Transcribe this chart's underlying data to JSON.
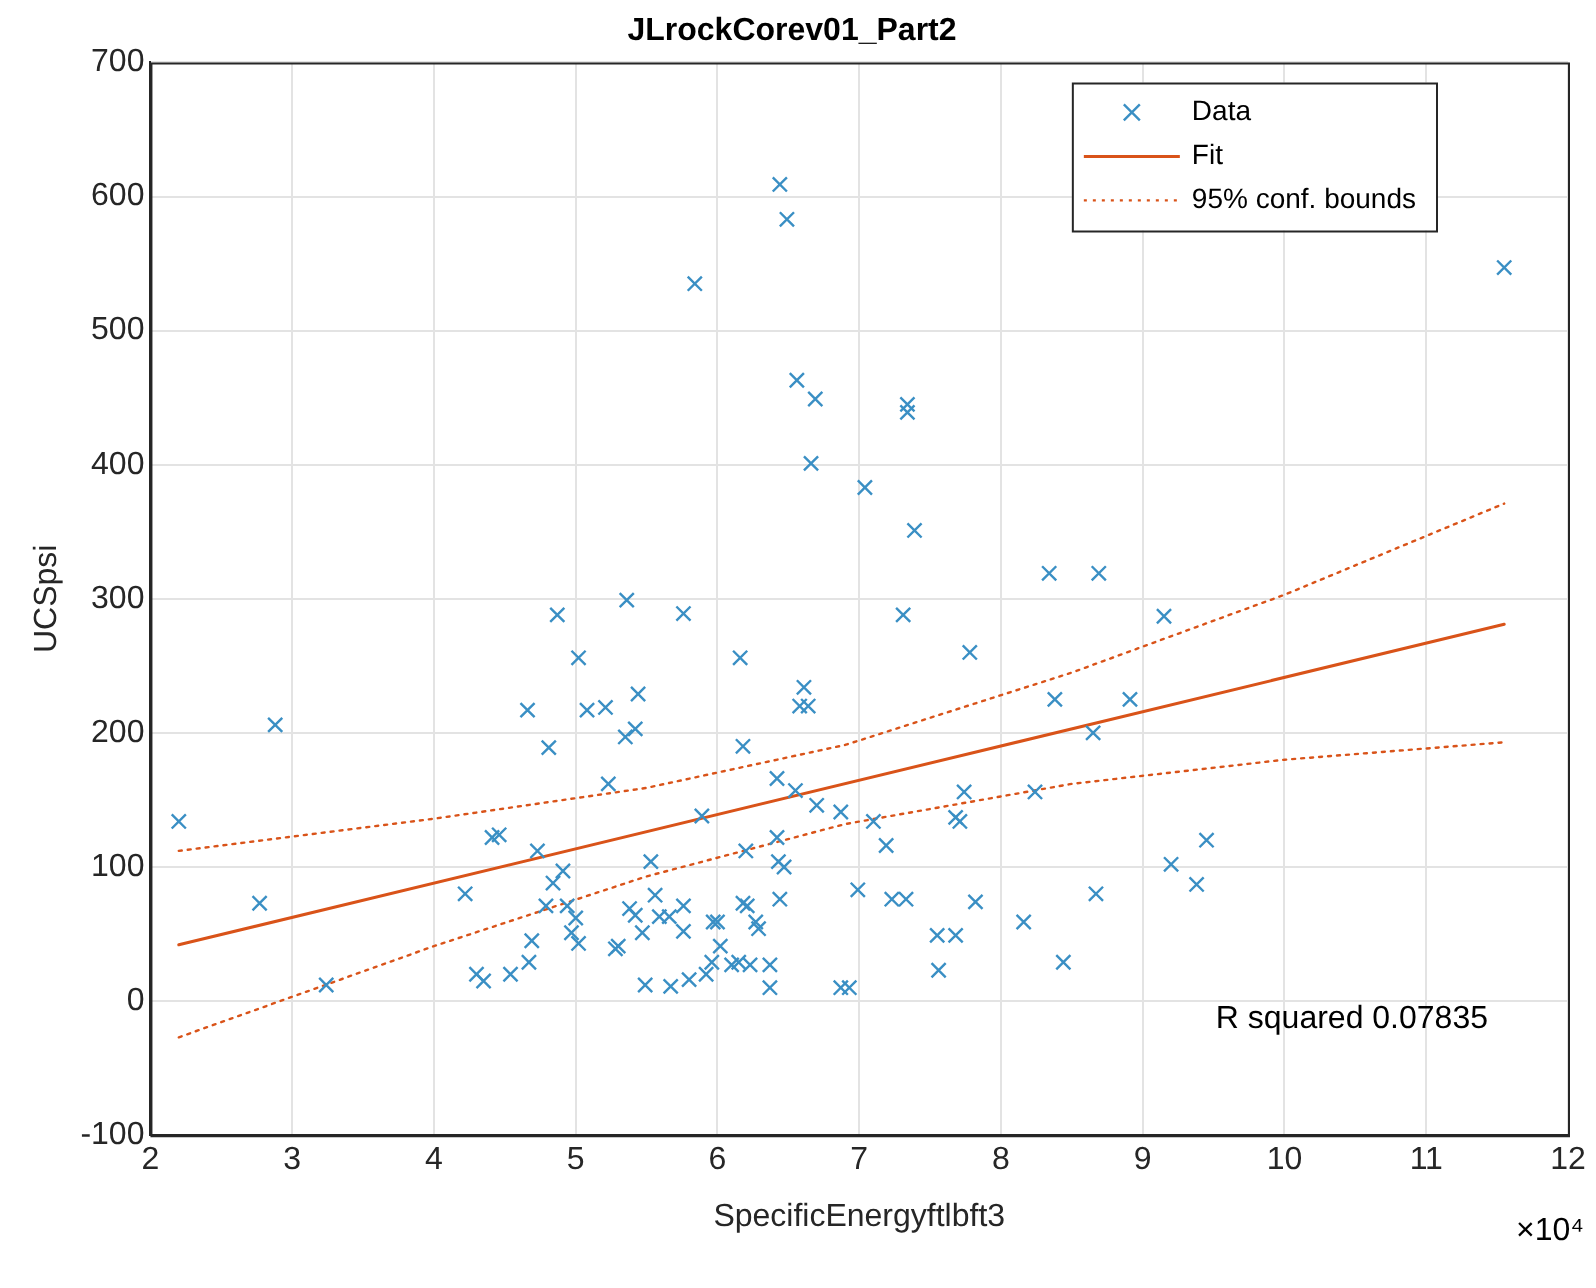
{
  "chart_data": {
    "type": "scatter",
    "title": "JLrockCorev01_Part2",
    "xlabel": "SpecificEnergyftlbft3",
    "ylabel": "UCSpsi",
    "xlim": [
      2,
      12
    ],
    "xticks": [
      2,
      3,
      4,
      5,
      6,
      7,
      8,
      9,
      10,
      11,
      12
    ],
    "ylim": [
      -100,
      700
    ],
    "yticks": [
      -100,
      0,
      100,
      200,
      300,
      400,
      500,
      600,
      700
    ],
    "grid": true,
    "legend": "top right",
    "annotations": [
      "R squared 0.07835",
      "×10⁴"
    ],
    "series": [
      {
        "name": "Data",
        "marker": "cross",
        "color": "#3a8fc4",
        "x": [
          6.44,
          6.49,
          5.84,
          6.56,
          6.69,
          6.66,
          4.87,
          5.36,
          5.76,
          11.55,
          7.34,
          7.34,
          7.04,
          7.39,
          8.34,
          8.69,
          7.31,
          9.15,
          2.2,
          2.88,
          2.77,
          3.24,
          4.22,
          4.3,
          4.35,
          4.41,
          4.46,
          4.54,
          4.66,
          4.67,
          4.69,
          4.73,
          4.79,
          4.81,
          4.84,
          4.91,
          4.94,
          4.97,
          5.0,
          5.02,
          5.02,
          5.08,
          5.21,
          5.23,
          5.28,
          5.3,
          5.35,
          5.38,
          5.42,
          5.42,
          5.44,
          5.47,
          5.49,
          5.53,
          5.56,
          5.59,
          5.66,
          5.67,
          5.76,
          5.76,
          5.8,
          5.89,
          5.92,
          5.96,
          5.97,
          6.0,
          6.02,
          6.1,
          6.15,
          6.16,
          6.18,
          6.18,
          6.2,
          6.21,
          6.23,
          6.27,
          6.29,
          6.37,
          6.37,
          6.42,
          6.42,
          6.43,
          6.44,
          6.47,
          6.55,
          6.61,
          6.58,
          6.64,
          6.7,
          6.87,
          6.87,
          6.93,
          7.78,
          8.38,
          8.91,
          8.65,
          7.1,
          7.19,
          6.99,
          7.23,
          7.33,
          7.74,
          7.68,
          7.71,
          8.24,
          7.82,
          7.55,
          7.68,
          7.56,
          8.16,
          8.44,
          8.67,
          9.2,
          9.45,
          9.38
        ],
        "values": [
          609,
          583,
          535,
          463,
          449,
          401,
          288,
          299,
          289,
          547,
          445,
          439,
          383,
          351,
          319,
          319,
          288,
          287,
          134,
          206,
          73,
          12,
          80,
          20,
          15,
          122,
          124,
          20,
          217,
          29,
          45,
          112,
          71,
          189,
          88,
          97,
          71,
          51,
          62,
          256,
          43,
          217,
          219,
          162,
          39,
          41,
          197,
          69,
          203,
          64,
          229,
          51,
          12,
          104,
          79,
          63,
          63,
          11,
          71,
          52,
          16,
          138,
          20,
          29,
          59,
          59,
          41,
          27,
          29,
          256,
          190,
          73,
          112,
          71,
          27,
          59,
          54,
          27,
          10,
          122,
          166,
          104,
          76,
          100,
          157,
          234,
          220,
          220,
          146,
          141,
          10,
          10,
          260,
          225,
          225,
          200,
          134,
          116,
          83,
          76,
          76,
          156,
          137,
          134,
          156,
          74,
          49,
          49,
          23,
          59,
          29,
          80,
          102,
          120,
          87
        ]
      },
      {
        "name": "Fit",
        "type": "line",
        "line_style": "solid",
        "color": "#d95319",
        "x": [
          2.2,
          11.55
        ],
        "values": [
          42,
          281
        ]
      },
      {
        "name": "95% conf. bounds",
        "type": "line",
        "line_style": "dotted",
        "color": "#d95319",
        "x": [
          2.2,
          4,
          5.5,
          6.9,
          8.5,
          10,
          11.55
        ],
        "values": [
          112,
          136,
          159,
          191,
          245,
          303,
          371
        ]
      },
      {
        "type": "line",
        "line_style": "dotted",
        "color": "#d95319",
        "x": [
          2.2,
          4,
          5.5,
          6.9,
          8.5,
          10,
          11.55
        ],
        "values": [
          -27,
          41,
          93,
          132,
          162,
          180,
          193
        ]
      }
    ]
  }
}
